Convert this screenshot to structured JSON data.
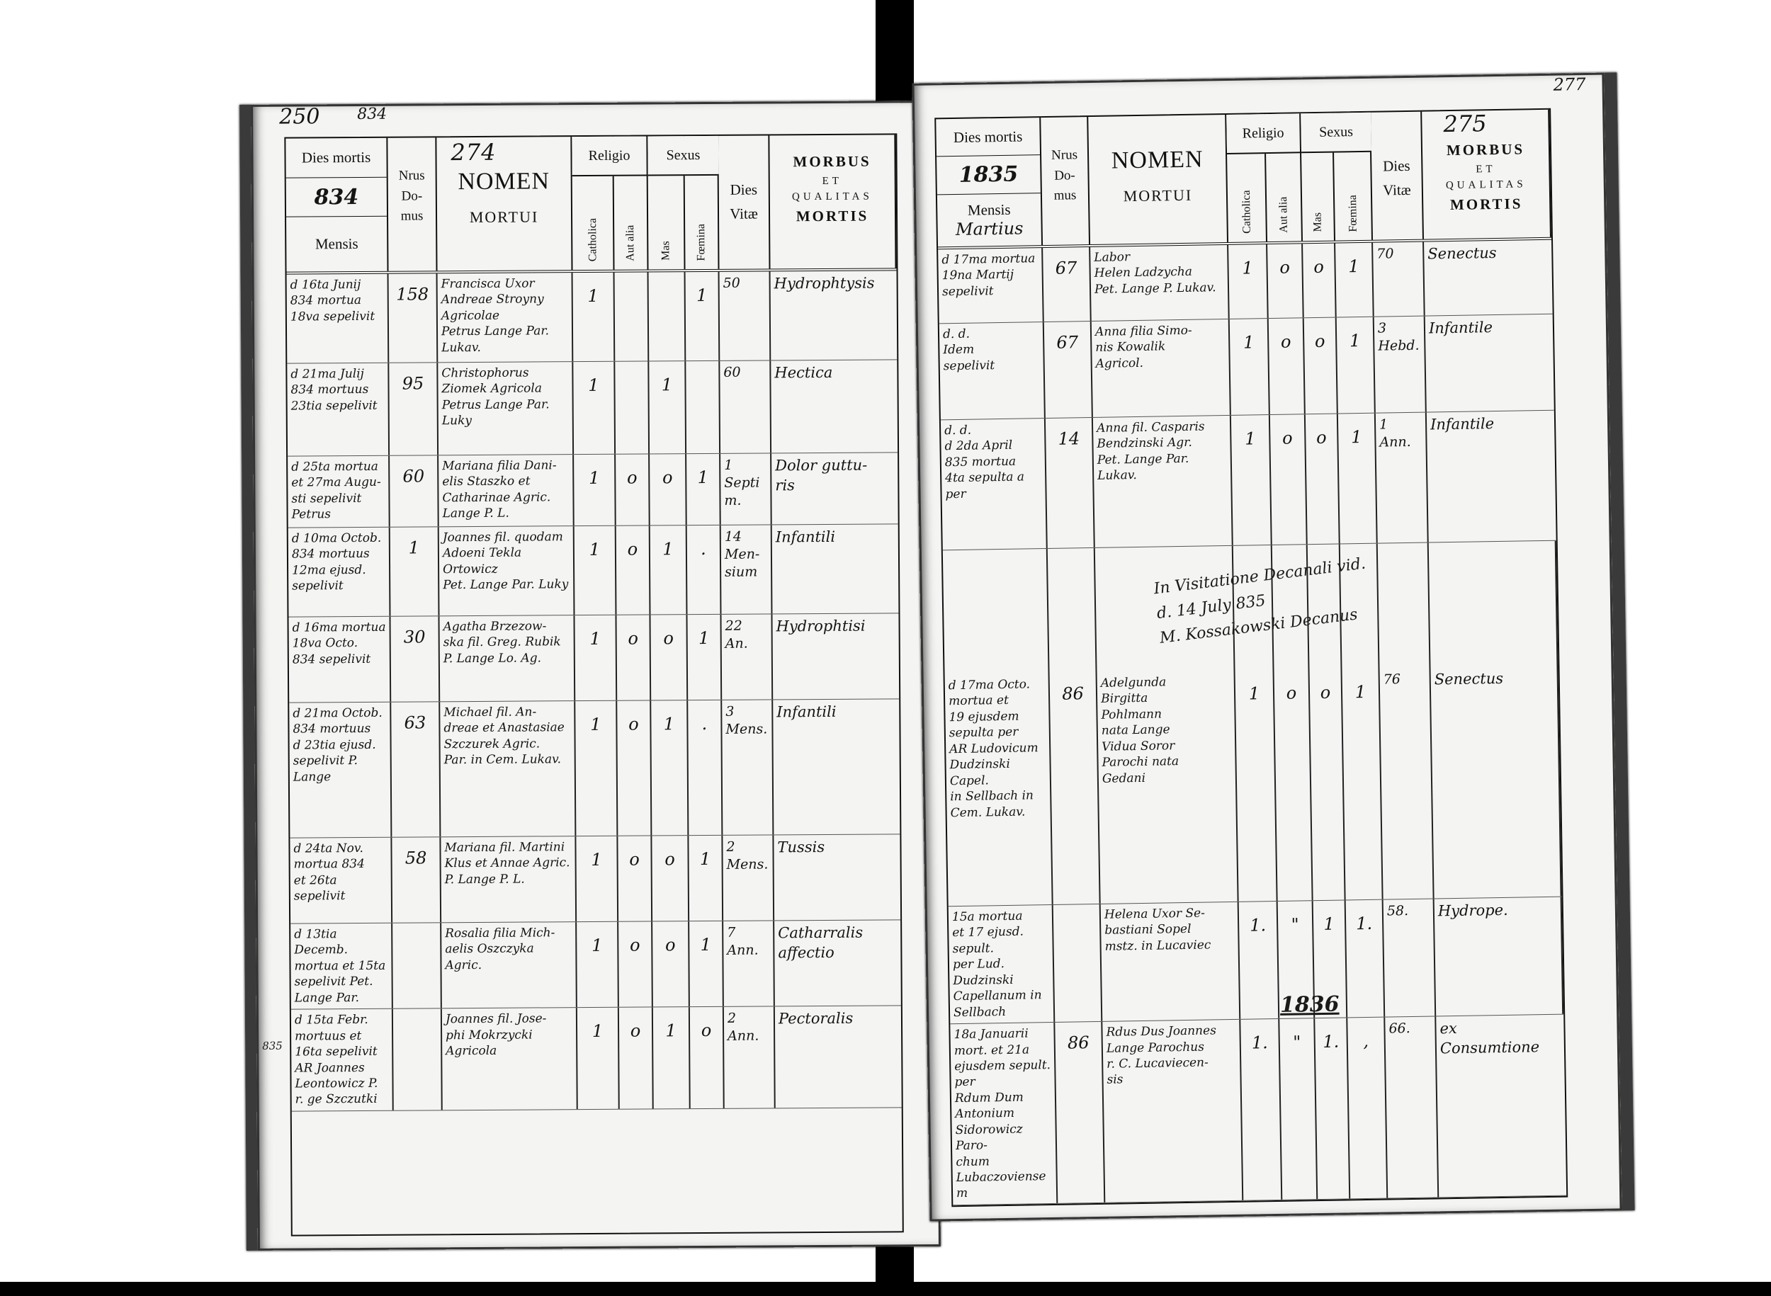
{
  "left_page": {
    "folio_top": "250",
    "year_top": "834",
    "page_number": "274",
    "margin_note": "835",
    "header": {
      "dies_mortis": "Dies mortis",
      "year": "834",
      "mensis": "Mensis",
      "mensis_value": "",
      "nrus": "Nrus",
      "domus": "Do-\nmus",
      "nomen": "NOMEN",
      "mortui": "MORTUI",
      "religio": "Religio",
      "sexus": "Sexus",
      "catholica": "Catholica",
      "aut_alia": "Aut alia",
      "mas": "Mas",
      "foemina": "Fœmina",
      "dies": "Dies",
      "vitae": "Vitæ",
      "morbus": "MORBUS",
      "et": "ET",
      "qualitas": "QUALITAS",
      "mortis": "MORTIS"
    },
    "rows": [
      {
        "dies": "d 16ta Junij\n834 mortua\n18va sepelivit",
        "nrus": "158",
        "nomen": "Francisca Uxor\nAndreae Stroyny\nAgricolae\nPetrus Lange Par. Lukav.",
        "cath": "1",
        "aut": "",
        "mas": "",
        "foem": "1",
        "vitae": "50",
        "morbus": "Hydrophtysis"
      },
      {
        "dies": "d 21ma Julij\n834 mortuus\n23tia sepelivit",
        "nrus": "95",
        "nomen": "Christophorus\nZiomek Agricola\nPetrus Lange Par. Luky",
        "cath": "1",
        "aut": "",
        "mas": "1",
        "foem": "",
        "vitae": "60",
        "morbus": "Hectica"
      },
      {
        "dies": "d 25ta mortua\net 27ma Augu-\nsti sepelivit Petrus",
        "nrus": "60",
        "nomen": "Mariana filia Dani-\nelis Staszko et\nCatharinae Agric.\nLange P. L.",
        "cath": "1",
        "aut": "o",
        "mas": "o",
        "foem": "1",
        "vitae": "1 Septim.",
        "morbus": "Dolor guttu-\nris"
      },
      {
        "dies": "d 10ma Octob.\n834 mortuus\n12ma ejusd. sepelivit",
        "nrus": "1",
        "nomen": "Joannes fil. quodam\nAdoeni Tekla Ortowicz\nPet. Lange Par. Luky",
        "cath": "1",
        "aut": "o",
        "mas": "1",
        "foem": ".",
        "vitae": "14 Men-\nsium",
        "morbus": "Infantili"
      },
      {
        "dies": "d 16ma mortua\n18va Octo.\n834 sepelivit",
        "nrus": "30",
        "nomen": "Agatha Brzezow-\nska fil. Greg. Rubik\nP. Lange Lo. Ag.",
        "cath": "1",
        "aut": "o",
        "mas": "o",
        "foem": "1",
        "vitae": "22 An.",
        "morbus": "Hydrophtisi"
      },
      {
        "dies": "d 21ma Octob.\n834 mortuus\nd 23tia ejusd.\nsepelivit P. Lange",
        "nrus": "63",
        "nomen": "Michael fil. An-\ndreae et Anastasiae\nSzczurek Agric.\nPar. in Cem. Lukav.",
        "cath": "1",
        "aut": "o",
        "mas": "1",
        "foem": ".",
        "vitae": "3 Mens.",
        "morbus": "Infantili"
      },
      {
        "dies": "d 24ta Nov.\nmortua 834\net 26ta sepelivit",
        "nrus": "58",
        "nomen": "Mariana fil. Martini\nKlus et Annae Agric.\nP. Lange P. L.",
        "cath": "1",
        "aut": "o",
        "mas": "o",
        "foem": "1",
        "vitae": "2 Mens.",
        "morbus": "Tussis"
      },
      {
        "dies": "d 13tia Decemb.\nmortua et 15ta\nsepelivit Pet. Lange Par.",
        "nrus": "",
        "nomen": "Rosalia filia Mich-\naelis Oszczyka Agric.",
        "cath": "1",
        "aut": "o",
        "mas": "o",
        "foem": "1",
        "vitae": "7 Ann.",
        "morbus": "Catharralis\naffectio"
      },
      {
        "dies": "d 15ta Febr.\nmortuus et\n16ta sepelivit\nAR Joannes Leontowicz P. r. ge Szczutki",
        "nrus": "",
        "nomen": "Joannes fil. Jose-\nphi Mokrzycki\nAgricola",
        "cath": "1",
        "aut": "o",
        "mas": "1",
        "foem": "o",
        "vitae": "2 Ann.",
        "morbus": "Pectoralis"
      }
    ]
  },
  "right_page": {
    "folio_top": "277",
    "page_number": "275",
    "year_marker": "1836",
    "visitation_note": "In Visitatione Decanali vid.\nd. 14 July 835\nM. Kossakowski Decanus",
    "header": {
      "dies_mortis": "Dies mortis",
      "year": "1835",
      "mensis": "Mensis",
      "mensis_value": "Martius",
      "nrus": "Nrus",
      "domus": "Do-\nmus",
      "nomen": "NOMEN",
      "mortui": "MORTUI",
      "religio": "Religio",
      "sexus": "Sexus",
      "catholica": "Catholica",
      "aut_alia": "Aut alia",
      "mas": "Mas",
      "foemina": "Fœmina",
      "dies": "Dies",
      "vitae": "Vitæ",
      "morbus": "MORBUS",
      "et": "ET",
      "qualitas": "QUALITAS",
      "mortis": "MORTIS"
    },
    "rows": [
      {
        "dies": "d 17ma mortua\n19na Martij\nsepelivit",
        "nrus": "67",
        "nomen": "Labor\nHelen Ladzycha\nPet. Lange P. Lukav.",
        "cath": "1",
        "aut": "o",
        "mas": "o",
        "foem": "1",
        "vitae": "70",
        "morbus": "Senectus"
      },
      {
        "dies": "d. d.\nIdem\nsepelivit",
        "nrus": "67",
        "nomen": "Anna filia Simo-\nnis Kowalik\nAgricol.",
        "cath": "1",
        "aut": "o",
        "mas": "o",
        "foem": "1",
        "vitae": "3 Hebd.",
        "morbus": "Infantile"
      },
      {
        "dies": "d. d.\nd 2da April\n835 mortua\n4ta sepulta a per",
        "nrus": "14",
        "nomen": "Anna fil. Casparis\nBendzinski Agr.\nPet. Lange Par. Lukav.",
        "cath": "1",
        "aut": "o",
        "mas": "o",
        "foem": "1",
        "vitae": "1 Ann.",
        "morbus": "Infantile"
      },
      {
        "dies": "d 17ma Octo.\nmortua et\n19 ejusdem\nsepulta per\nAR Ludovicum\nDudzinski Capel.\nin Sellbach in\nCem. Lukav.",
        "nrus": "86",
        "nomen": "Adelgunda\nBirgitta\nPohlmann\nnata Lange\nVidua Soror\nParochi nata\nGedani",
        "cath": "1",
        "aut": "o",
        "mas": "o",
        "foem": "1",
        "vitae": "76",
        "morbus": "Senectus"
      },
      {
        "dies": "15a mortua\net 17 ejusd. sepult.\nper Lud. Dudzinski\nCapellanum in Sellbach",
        "nrus": "",
        "nomen": "Helena Uxor Se-\nbastiani Sopel\nmstz. in Lucaviec",
        "cath": "1.",
        "aut": "\"",
        "mas": "1",
        "foem": "1.",
        "vitae": "58.",
        "morbus": "Hydrope."
      },
      {
        "dies": "18a Januarii\nmort. et 21a\nejusdem sepult. per\nRdum Dum Antonium\nSidorowicz Paro-\nchum Lubaczoviensem",
        "nrus": "86",
        "nomen": "Rdus Dus Joannes\nLange Parochus\nr. C. Lucaviecen-\nsis",
        "cath": "1.",
        "aut": "\"",
        "mas": "1.",
        "foem": ",",
        "vitae": "66.",
        "morbus": "ex\nConsumtione"
      }
    ]
  },
  "colors": {
    "ink": "#141414",
    "paper": "#f4f4f2",
    "scan_border": "#000000"
  }
}
